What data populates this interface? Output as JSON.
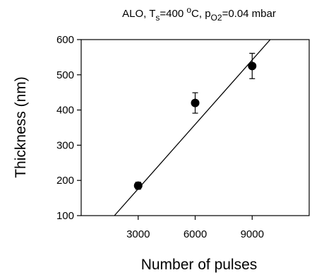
{
  "chart_data": {
    "type": "scatter",
    "title": {
      "prefix": "ALO, T",
      "sub1": "s",
      "mid1": "=400 ",
      "sup1": "o",
      "mid2": "C, p",
      "sub2": "O2",
      "suffix": "=0.04 mbar"
    },
    "xlabel": "Number of pulses",
    "ylabel": "Thickness (nm)",
    "xlim": [
      0,
      12000
    ],
    "ylim": [
      100,
      600
    ],
    "xticks": [
      3000,
      6000,
      9000
    ],
    "xtick_labels": [
      "3000",
      "6000",
      "9000"
    ],
    "yticks": [
      100,
      200,
      300,
      400,
      500,
      600
    ],
    "ytick_labels": [
      "100",
      "200",
      "300",
      "400",
      "500",
      "600"
    ],
    "grid": false,
    "series": [
      {
        "x": [
          3000,
          6000,
          9000
        ],
        "y": [
          185,
          420,
          525
        ],
        "yerr": [
          10,
          29,
          36
        ]
      }
    ],
    "fit_line": {
      "type": "linear",
      "x": [
        1750,
        9950
      ],
      "y": [
        100,
        600
      ]
    }
  }
}
